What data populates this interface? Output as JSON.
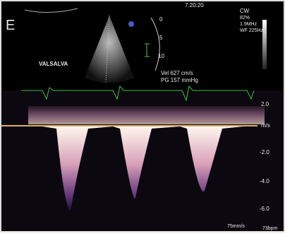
{
  "panel_label": "E",
  "time": "7:20:20",
  "settings": [
    "CW",
    "82%",
    "1.9MHz",
    "WF 225Hz"
  ],
  "maneuver": "VALSALVA",
  "depth_scale": [
    "0",
    "5",
    "10"
  ],
  "measurements": [
    "Vel  627 cm/s",
    "PG  157 mmHg"
  ],
  "velocity_scale": [
    "2.0",
    "m/s",
    "-2.0",
    "-4.0",
    "-6.0"
  ],
  "sweep_speed": "75mm/s",
  "heart_rate": "73bpm"
}
